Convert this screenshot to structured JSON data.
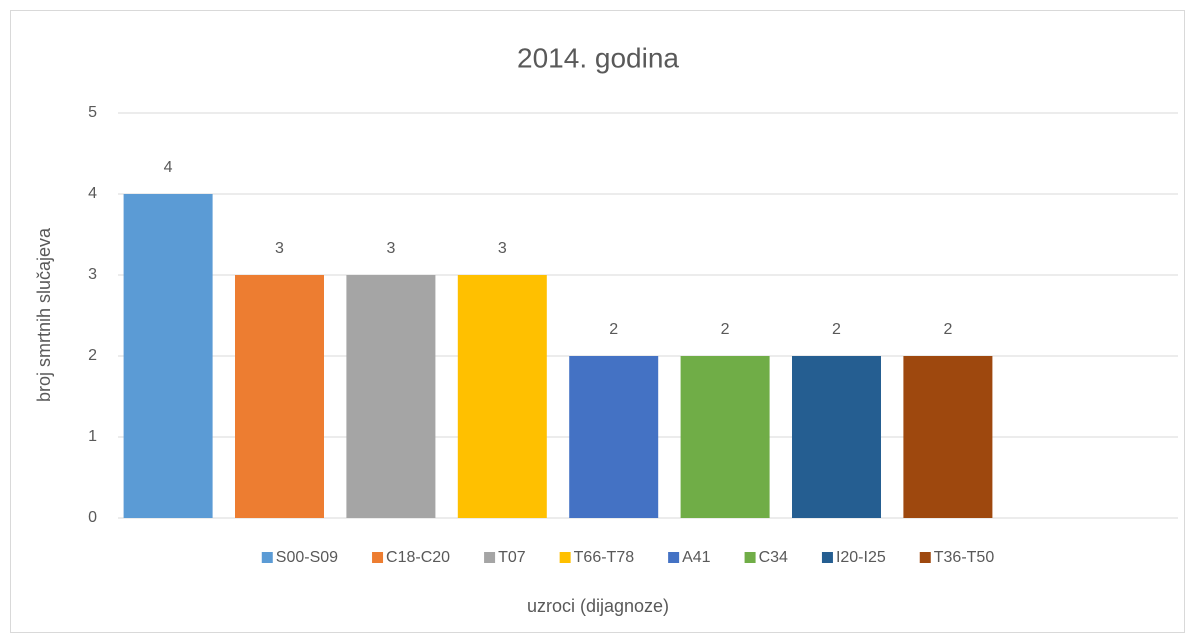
{
  "chart_data": {
    "type": "bar",
    "title": "2014. godina",
    "x_label": "uzroci (dijagnoze)",
    "y_label": "broj smrtnih slučajeva",
    "series": [
      {
        "name": "S00-S09",
        "color": "#5b9bd5",
        "values": [
          4
        ]
      },
      {
        "name": "C18-C20",
        "color": "#ed7d31",
        "values": [
          3
        ]
      },
      {
        "name": "T07",
        "color": "#a5a5a5",
        "values": [
          3
        ]
      },
      {
        "name": "T66-T78",
        "color": "#ffc000",
        "values": [
          3
        ]
      },
      {
        "name": "A41",
        "color": "#4472c4",
        "values": [
          2
        ]
      },
      {
        "name": "C34",
        "color": "#70ad47",
        "values": [
          2
        ]
      },
      {
        "name": "I20-I25",
        "color": "#255e91",
        "values": [
          2
        ]
      },
      {
        "name": "T36-T50",
        "color": "#9e480e",
        "values": [
          2
        ]
      }
    ],
    "ylim": [
      0,
      5
    ],
    "yticks": [
      0,
      1,
      2,
      3,
      4,
      5
    ],
    "grid": true,
    "legend": "bottom"
  }
}
